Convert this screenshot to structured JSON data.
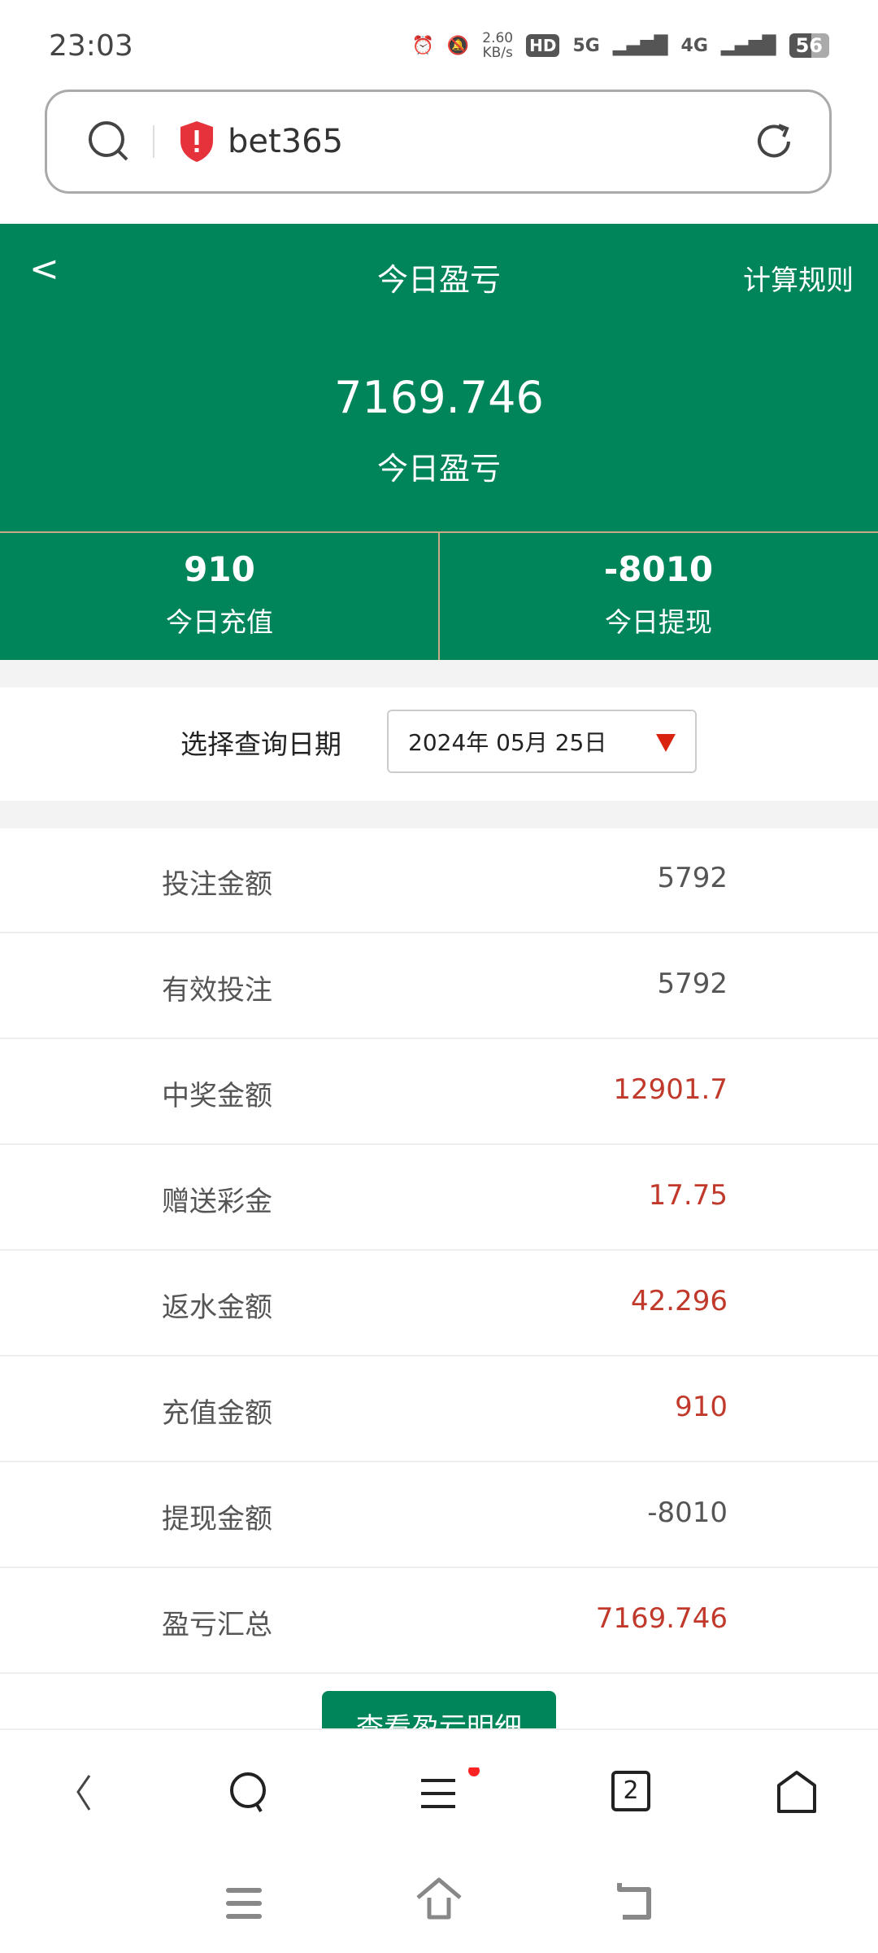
{
  "status": {
    "time": "23:03",
    "speed_value": "2.60",
    "speed_unit": "KB/s",
    "hd": "HD",
    "sim1": "5G",
    "sim2": "4G",
    "battery": "56"
  },
  "browser": {
    "url": "bet365",
    "tabs_count": "2"
  },
  "header": {
    "back": "<",
    "title": "今日盈亏",
    "rules": "计算规则",
    "total_value": "7169.746",
    "total_label": "今日盈亏"
  },
  "stats": [
    {
      "value": "910",
      "label": "今日充值"
    },
    {
      "value": "-8010",
      "label": "今日提现"
    }
  ],
  "date": {
    "label": "选择查询日期",
    "value": "2024年 05月 25日"
  },
  "rows": [
    {
      "label": "投注金额",
      "value": "5792",
      "color": "#555555"
    },
    {
      "label": "有效投注",
      "value": "5792",
      "color": "#555555"
    },
    {
      "label": "中奖金额",
      "value": "12901.7",
      "color": "#c0392b"
    },
    {
      "label": "赠送彩金",
      "value": "17.75",
      "color": "#c0392b"
    },
    {
      "label": "返水金额",
      "value": "42.296",
      "color": "#c0392b"
    },
    {
      "label": "充值金额",
      "value": "910",
      "color": "#c0392b"
    },
    {
      "label": "提现金额",
      "value": "-8010",
      "color": "#555555"
    },
    {
      "label": "盈亏汇总",
      "value": "7169.746",
      "color": "#c0392b"
    }
  ],
  "detail_button": "查看盈亏明细",
  "colors": {
    "brand": "#00845a",
    "negative": "#c0392b"
  }
}
